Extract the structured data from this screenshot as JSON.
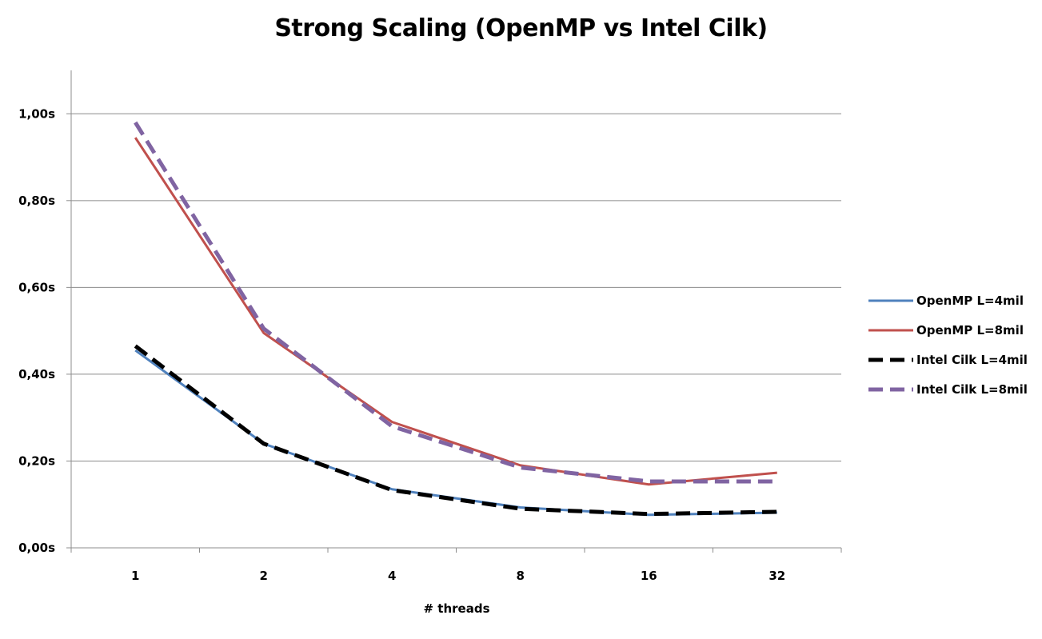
{
  "chart_data": {
    "type": "line",
    "title": "Strong Scaling (OpenMP vs Intel Cilk)",
    "xlabel": "# threads",
    "ylabel": "",
    "categories": [
      "1",
      "2",
      "4",
      "8",
      "16",
      "32"
    ],
    "y_tick_labels": [
      "0,00s",
      "0,20s",
      "0,40s",
      "0,60s",
      "0,80s",
      "1,00s"
    ],
    "y_ticks": [
      0,
      0.2,
      0.4,
      0.6,
      0.8,
      1.0
    ],
    "ylim": [
      0,
      1.1
    ],
    "grid": "horizontal",
    "legend_position": "right",
    "series": [
      {
        "name": "OpenMP L=4mil",
        "values": [
          0.455,
          0.24,
          0.135,
          0.093,
          0.076,
          0.081
        ],
        "color": "#4f81bd",
        "dash": "solid"
      },
      {
        "name": "OpenMP L=8mil",
        "values": [
          0.945,
          0.495,
          0.29,
          0.19,
          0.146,
          0.173
        ],
        "color": "#c0504d",
        "dash": "solid"
      },
      {
        "name": "Intel Cilk L=4mil",
        "values": [
          0.465,
          0.24,
          0.133,
          0.09,
          0.078,
          0.083
        ],
        "color": "#000000",
        "dash": "dashed"
      },
      {
        "name": "Intel Cilk L=8mil",
        "values": [
          0.98,
          0.505,
          0.28,
          0.185,
          0.153,
          0.153
        ],
        "color": "#8064a2",
        "dash": "dashed"
      }
    ]
  }
}
